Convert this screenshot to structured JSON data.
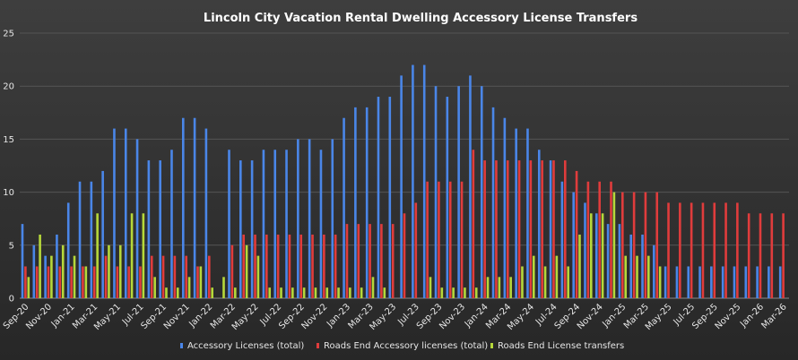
{
  "chart_data": {
    "type": "bar",
    "title": "Lincoln City Vacation Rental Dwelling Accessory License Transfers",
    "xlabel": "",
    "ylabel": "",
    "ylim": [
      0,
      25
    ],
    "yticks": [
      0,
      5,
      10,
      15,
      20,
      25
    ],
    "grid": true,
    "legend_position": "bottom",
    "categories": [
      "Sep-20",
      "Oct-20",
      "Nov-20",
      "Dec-20",
      "Jan-21",
      "Feb-21",
      "Mar-21",
      "Apr-21",
      "May-21",
      "Jun-21",
      "Jul-21",
      "Aug-21",
      "Sep-21",
      "Oct-21",
      "Nov-21",
      "Dec-21",
      "Jan-22",
      "Feb-22",
      "Mar-22",
      "Apr-22",
      "May-22",
      "Jun-22",
      "Jul-22",
      "Aug-22",
      "Sep-22",
      "Oct-22",
      "Nov-22",
      "Dec-22",
      "Jan-23",
      "Feb-23",
      "Mar-23",
      "Apr-23",
      "May-23",
      "Jun-23",
      "Jul-23",
      "Aug-23",
      "Sep-23",
      "Oct-23",
      "Nov-23",
      "Dec-23",
      "Jan-24",
      "Feb-24",
      "Mar-24",
      "Apr-24",
      "May-24",
      "Jun-24",
      "Jul-24",
      "Aug-24",
      "Sep-24",
      "Oct-24",
      "Nov-24",
      "Dec-24",
      "Jan-25",
      "Feb-25",
      "Mar-25",
      "Apr-25",
      "May-25",
      "Jun-25",
      "Jul-25",
      "Aug-25",
      "Sep-25",
      "Oct-25",
      "Nov-25",
      "Dec-25",
      "Jan-26",
      "Feb-26",
      "Mar-26"
    ],
    "x_tick_labels": [
      "Sep-20",
      "Nov-20",
      "Jan-21",
      "Mar-21",
      "May-21",
      "Jul-21",
      "Sep-21",
      "Nov-21",
      "Jan-22",
      "Mar-22",
      "May-22",
      "Jul-22",
      "Sep-22",
      "Nov-22",
      "Jan-23",
      "Mar-23",
      "May-23",
      "Jul-23",
      "Sep-23",
      "Nov-23",
      "Jan-24",
      "Mar-24",
      "May-24",
      "Jul-24",
      "Sep-24",
      "Nov-24",
      "Jan-25",
      "Mar-25",
      "May-25",
      "Jul-25",
      "Sep-25",
      "Nov-25",
      "Jan-26",
      "Mar-26"
    ],
    "series": [
      {
        "name": "Accessory Licenses (total)",
        "color": "#4a86e8",
        "values": [
          7,
          5,
          4,
          6,
          9,
          11,
          11,
          12,
          16,
          16,
          15,
          13,
          13,
          14,
          17,
          17,
          16,
          null,
          14,
          13,
          13,
          14,
          14,
          14,
          15,
          15,
          14,
          15,
          17,
          18,
          18,
          19,
          19,
          21,
          22,
          22,
          20,
          19,
          20,
          21,
          20,
          18,
          17,
          16,
          16,
          14,
          13,
          11,
          10,
          9,
          8,
          7,
          7,
          6,
          6,
          5,
          3,
          3,
          3,
          3,
          3,
          3,
          3,
          3,
          3,
          3,
          3
        ]
      },
      {
        "name": "Roads End Accessory licenses (total)",
        "color": "#e03c3c",
        "values": [
          3,
          3,
          3,
          3,
          3,
          3,
          3,
          4,
          3,
          3,
          3,
          4,
          4,
          4,
          4,
          3,
          4,
          null,
          5,
          6,
          6,
          6,
          6,
          6,
          6,
          6,
          6,
          6,
          7,
          7,
          7,
          7,
          7,
          8,
          9,
          11,
          11,
          11,
          11,
          14,
          13,
          13,
          13,
          13,
          13,
          13,
          13,
          13,
          12,
          11,
          11,
          11,
          10,
          10,
          10,
          10,
          9,
          9,
          9,
          9,
          9,
          9,
          9,
          8,
          8,
          8,
          8
        ]
      },
      {
        "name": "Roads End License transfers",
        "color": "#b6d83a",
        "values": [
          2,
          6,
          4,
          5,
          4,
          3,
          8,
          5,
          5,
          8,
          8,
          2,
          1,
          1,
          2,
          3,
          1,
          2,
          1,
          5,
          4,
          1,
          1,
          1,
          1,
          1,
          1,
          1,
          1,
          1,
          2,
          1,
          0,
          0,
          0,
          2,
          1,
          1,
          1,
          1,
          2,
          2,
          2,
          3,
          4,
          3,
          4,
          3,
          6,
          8,
          8,
          10,
          4,
          4,
          4,
          3,
          0,
          0,
          0,
          0,
          0,
          0,
          0,
          0,
          0,
          0,
          0
        ]
      }
    ]
  }
}
